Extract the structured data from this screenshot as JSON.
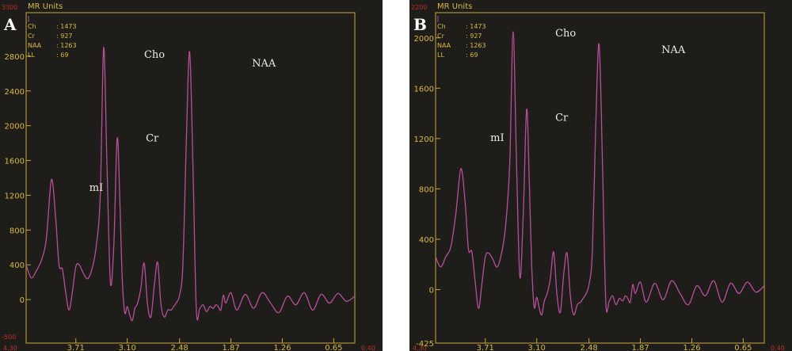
{
  "chart_data": [
    {
      "type": "line",
      "panel_label": "A",
      "axis_title": "MR Units",
      "legend": [
        {
          "name": "Ch",
          "value": ": 1473"
        },
        {
          "name": "Cr",
          "value": ": 927"
        },
        {
          "name": "NAA",
          "value": ": 1263"
        },
        {
          "name": "LL",
          "value": ": 69"
        }
      ],
      "y_edge_labels": {
        "top": "3300",
        "bottom": "-500"
      },
      "x_edge_labels": {
        "left": "4.30",
        "right": "0.40"
      },
      "xlim": [
        4.3,
        0.4
      ],
      "ylim": [
        -500,
        3300
      ],
      "yticks": [
        {
          "value": 0,
          "label": "0"
        },
        {
          "value": 400,
          "label": "400"
        },
        {
          "value": 800,
          "label": "800"
        },
        {
          "value": 1200,
          "label": "1200"
        },
        {
          "value": 1600,
          "label": "1600"
        },
        {
          "value": 2000,
          "label": "2000"
        },
        {
          "value": 2400,
          "label": "2400"
        },
        {
          "value": 2800,
          "label": "2800"
        }
      ],
      "xticks": [
        {
          "value": 3.71,
          "label": "3.71"
        },
        {
          "value": 3.1,
          "label": "3.10"
        },
        {
          "value": 2.48,
          "label": "2.48"
        },
        {
          "value": 1.87,
          "label": "1.87"
        },
        {
          "value": 1.26,
          "label": "1.26"
        },
        {
          "value": 0.65,
          "label": "0.65"
        }
      ],
      "annotations": [
        {
          "text": "mI",
          "x": 3.55,
          "y": 1250
        },
        {
          "text": "Cho",
          "x": 2.9,
          "y": 2780
        },
        {
          "text": "Cr",
          "x": 2.88,
          "y": 1820
        },
        {
          "text": "NAA",
          "x": 1.62,
          "y": 2680
        }
      ],
      "x": [
        4.3,
        4.24,
        4.18,
        4.12,
        4.06,
        4.0,
        3.95,
        3.91,
        3.87,
        3.83,
        3.79,
        3.75,
        3.71,
        3.67,
        3.62,
        3.57,
        3.52,
        3.47,
        3.42,
        3.38,
        3.34,
        3.3,
        3.26,
        3.22,
        3.19,
        3.16,
        3.13,
        3.1,
        3.07,
        3.04,
        3.01,
        2.98,
        2.94,
        2.9,
        2.86,
        2.82,
        2.78,
        2.74,
        2.7,
        2.66,
        2.62,
        2.58,
        2.55,
        2.52,
        2.48,
        2.44,
        2.4,
        2.36,
        2.32,
        2.28,
        2.24,
        2.2,
        2.16,
        2.12,
        2.08,
        2.05,
        2.02,
        1.99,
        1.96,
        1.93,
        1.87,
        1.8,
        1.7,
        1.6,
        1.5,
        1.4,
        1.3,
        1.2,
        1.1,
        1.0,
        0.9,
        0.8,
        0.7,
        0.6,
        0.5,
        0.4
      ],
      "series": [
        {
          "values": [
            400,
            250,
            330,
            450,
            700,
            1380,
            950,
            400,
            350,
            80,
            -120,
            100,
            380,
            400,
            300,
            240,
            350,
            600,
            1200,
            2900,
            1500,
            200,
            620,
            1850,
            1200,
            250,
            -150,
            -80,
            -180,
            -240,
            -100,
            -50,
            120,
            420,
            -50,
            -200,
            150,
            430,
            -60,
            -200,
            -120,
            -120,
            -80,
            -40,
            50,
            400,
            1800,
            2850,
            1500,
            -120,
            -100,
            -60,
            -140,
            -80,
            -100,
            -60,
            -80,
            -120,
            50,
            -40,
            80,
            -120,
            60,
            -100,
            80,
            -40,
            -150,
            40,
            -60,
            80,
            -120,
            60,
            -40,
            70,
            -20,
            40
          ]
        }
      ]
    },
    {
      "type": "line",
      "panel_label": "B",
      "axis_title": "MR Units",
      "legend": [
        {
          "name": "Ch",
          "value": ": 1473"
        },
        {
          "name": "Cr",
          "value": ": 927"
        },
        {
          "name": "NAA",
          "value": ": 1263"
        },
        {
          "name": "LL",
          "value": ": 69"
        }
      ],
      "y_edge_labels": {
        "top": "2200",
        "bottom": ""
      },
      "x_edge_labels": {
        "left": "4.30",
        "right": "0.40"
      },
      "xlim": [
        4.3,
        0.4
      ],
      "ylim": [
        -425,
        2200
      ],
      "yticks": [
        {
          "value": -425,
          "label": "-425"
        },
        {
          "value": 0,
          "label": "0"
        },
        {
          "value": 400,
          "label": "400"
        },
        {
          "value": 800,
          "label": "800"
        },
        {
          "value": 1200,
          "label": "1200"
        },
        {
          "value": 1600,
          "label": "1600"
        },
        {
          "value": 2000,
          "label": "2000"
        }
      ],
      "xticks": [
        {
          "value": 3.71,
          "label": "3.71"
        },
        {
          "value": 3.1,
          "label": "3.10"
        },
        {
          "value": 2.48,
          "label": "2.48"
        },
        {
          "value": 1.87,
          "label": "1.87"
        },
        {
          "value": 1.26,
          "label": "1.26"
        },
        {
          "value": 0.65,
          "label": "0.65"
        }
      ],
      "annotations": [
        {
          "text": "mI",
          "x": 3.65,
          "y": 1180
        },
        {
          "text": "Cho",
          "x": 2.88,
          "y": 2010
        },
        {
          "text": "Cr",
          "x": 2.88,
          "y": 1340
        },
        {
          "text": "NAA",
          "x": 1.62,
          "y": 1880
        }
      ],
      "x": [
        4.3,
        4.24,
        4.18,
        4.12,
        4.06,
        4.0,
        3.95,
        3.91,
        3.87,
        3.83,
        3.79,
        3.75,
        3.71,
        3.67,
        3.62,
        3.57,
        3.52,
        3.47,
        3.42,
        3.38,
        3.34,
        3.3,
        3.26,
        3.22,
        3.19,
        3.16,
        3.13,
        3.1,
        3.07,
        3.04,
        3.01,
        2.98,
        2.94,
        2.9,
        2.86,
        2.82,
        2.78,
        2.74,
        2.7,
        2.66,
        2.62,
        2.58,
        2.55,
        2.52,
        2.48,
        2.44,
        2.4,
        2.36,
        2.32,
        2.28,
        2.24,
        2.2,
        2.16,
        2.12,
        2.08,
        2.05,
        2.02,
        1.99,
        1.96,
        1.93,
        1.87,
        1.8,
        1.7,
        1.6,
        1.5,
        1.4,
        1.3,
        1.2,
        1.1,
        1.0,
        0.9,
        0.8,
        0.7,
        0.6,
        0.5,
        0.4
      ],
      "series": [
        {
          "values": [
            260,
            180,
            260,
            340,
            600,
            960,
            700,
            320,
            300,
            60,
            -150,
            50,
            260,
            290,
            240,
            180,
            280,
            500,
            1000,
            2050,
            1000,
            100,
            600,
            1430,
            900,
            200,
            -140,
            -60,
            -150,
            -200,
            -90,
            -40,
            80,
            300,
            -40,
            -180,
            120,
            290,
            -60,
            -200,
            -120,
            -100,
            -70,
            -40,
            40,
            300,
            1300,
            1950,
            1000,
            -100,
            -90,
            -50,
            -120,
            -70,
            -90,
            -50,
            -70,
            -100,
            40,
            -30,
            60,
            -100,
            50,
            -80,
            70,
            -30,
            -120,
            30,
            -50,
            70,
            -100,
            50,
            -30,
            60,
            -20,
            30
          ]
        }
      ]
    }
  ]
}
